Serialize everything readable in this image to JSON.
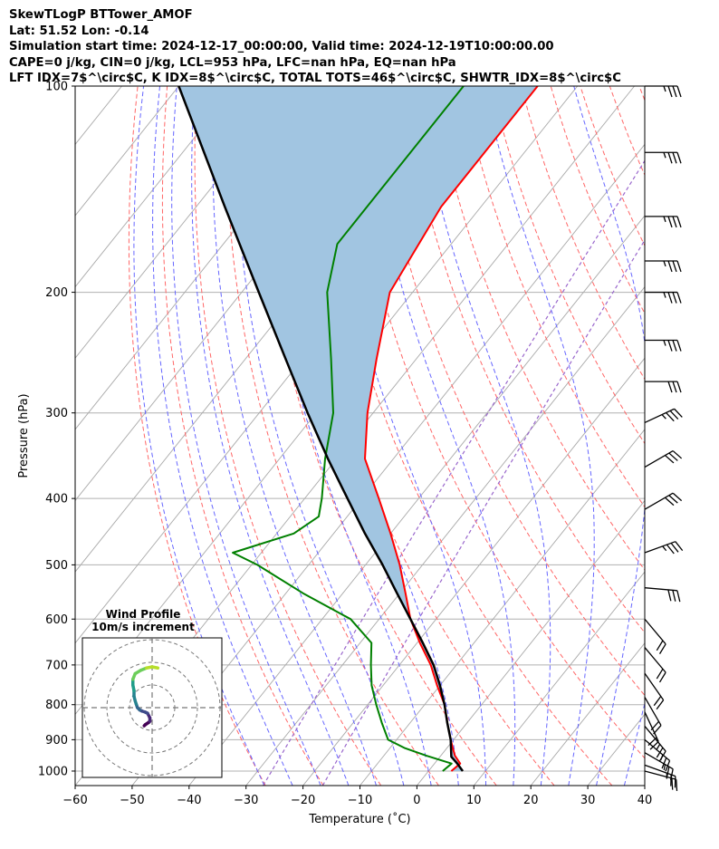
{
  "header": {
    "line1": "SkewTLogP BTTower_AMOF",
    "line2": "Lat: 51.52   Lon: -0.14",
    "line3": "Simulation start time: 2024-12-17_00:00:00, Valid time: 2024-12-19T10:00:00.00",
    "line4": "CAPE=0 j/kg, CIN=0 j/kg, LCL=953 hPa, LFC=nan hPa, EQ=nan hPa",
    "line5": "LFT IDX=7$^\\circ$C, K IDX=8$^\\circ$C, TOTAL TOTS=46$^\\circ$C, SHWTR_IDX=8$^\\circ$C"
  },
  "chart_data": {
    "type": "line",
    "xlabel": "Temperature ($^\\circ$C)",
    "ylabel": "Pressure (hPa)",
    "xlim": [
      -60,
      40
    ],
    "ylim": [
      1050,
      100
    ],
    "yscale": "log",
    "grid": true,
    "x_ticks": [
      -60,
      -50,
      -40,
      -30,
      -20,
      -10,
      0,
      10,
      20,
      30,
      40
    ],
    "y_ticks": [
      100,
      200,
      300,
      400,
      500,
      600,
      700,
      800,
      900,
      1000
    ],
    "colors": {
      "temperature": "#ff0000",
      "dewpoint": "#008000",
      "parcel": "#000000",
      "shade": "#a1c5e1",
      "isotherm": "#aaaaaa",
      "dry_adiabat": "#ff6666",
      "moist_adiabat": "#6666ff",
      "mixing_ratio": "#9966cc"
    },
    "series": [
      {
        "key": "temperature",
        "pressure": [
          1000,
          975,
          950,
          925,
          900,
          850,
          800,
          750,
          700,
          650,
          600,
          550,
          500,
          450,
          400,
          350,
          300,
          250,
          200,
          150,
          100
        ],
        "values": [
          4,
          4.5,
          2.5,
          1,
          -0.5,
          -3.5,
          -6.5,
          -10.5,
          -14.5,
          -19.5,
          -24.5,
          -29,
          -34,
          -40,
          -47,
          -55,
          -61,
          -67,
          -74,
          -77,
          -77
        ]
      },
      {
        "key": "dewpoint",
        "pressure": [
          1000,
          975,
          950,
          925,
          900,
          850,
          800,
          750,
          700,
          650,
          600,
          550,
          500,
          480,
          450,
          425,
          400,
          350,
          300,
          250,
          200,
          170,
          100
        ],
        "values": [
          2.5,
          3,
          -2.5,
          -7.5,
          -11.5,
          -15,
          -18.5,
          -22,
          -25,
          -28,
          -35,
          -47,
          -59,
          -65,
          -57,
          -55,
          -57,
          -62,
          -67,
          -75,
          -85,
          -90,
          -90
        ]
      },
      {
        "key": "parcel",
        "pressure": [
          1000,
          975,
          953,
          900,
          850,
          800,
          750,
          700,
          650,
          600,
          550,
          500,
          450,
          400,
          350,
          300,
          250,
          200,
          150,
          100
        ],
        "values": [
          6,
          4,
          2,
          -0.5,
          -3.5,
          -6.5,
          -10,
          -14,
          -19,
          -24.5,
          -30.5,
          -37,
          -44.5,
          -52.5,
          -61.5,
          -71.5,
          -83,
          -97,
          -115,
          -140
        ]
      }
    ],
    "wind_barbs": [
      {
        "p": 100,
        "dir_deg": 270,
        "speed_kt": 35
      },
      {
        "p": 125,
        "dir_deg": 270,
        "speed_kt": 35
      },
      {
        "p": 155,
        "dir_deg": 270,
        "speed_kt": 35
      },
      {
        "p": 180,
        "dir_deg": 270,
        "speed_kt": 35
      },
      {
        "p": 200,
        "dir_deg": 270,
        "speed_kt": 35
      },
      {
        "p": 235,
        "dir_deg": 270,
        "speed_kt": 35
      },
      {
        "p": 270,
        "dir_deg": 270,
        "speed_kt": 30
      },
      {
        "p": 310,
        "dir_deg": 245,
        "speed_kt": 35
      },
      {
        "p": 360,
        "dir_deg": 240,
        "speed_kt": 30
      },
      {
        "p": 415,
        "dir_deg": 240,
        "speed_kt": 30
      },
      {
        "p": 480,
        "dir_deg": 250,
        "speed_kt": 35
      },
      {
        "p": 540,
        "dir_deg": 275,
        "speed_kt": 30
      },
      {
        "p": 600,
        "dir_deg": 320,
        "speed_kt": 20
      },
      {
        "p": 660,
        "dir_deg": 320,
        "speed_kt": 20
      },
      {
        "p": 720,
        "dir_deg": 325,
        "speed_kt": 20
      },
      {
        "p": 780,
        "dir_deg": 330,
        "speed_kt": 20
      },
      {
        "p": 820,
        "dir_deg": 335,
        "speed_kt": 20
      },
      {
        "p": 860,
        "dir_deg": 320,
        "speed_kt": 25
      },
      {
        "p": 900,
        "dir_deg": 310,
        "speed_kt": 25
      },
      {
        "p": 940,
        "dir_deg": 300,
        "speed_kt": 25
      },
      {
        "p": 980,
        "dir_deg": 290,
        "speed_kt": 25
      },
      {
        "p": 1000,
        "dir_deg": 285,
        "speed_kt": 20
      }
    ],
    "inset": {
      "title": "Wind Profile",
      "subtitle": "10m/s increment",
      "rings_ms": [
        10,
        20,
        30
      ],
      "hodograph": [
        [
          -7,
          -16
        ],
        [
          -6,
          -15
        ],
        [
          -3,
          -13
        ],
        [
          -2,
          -12
        ],
        [
          -2,
          -9
        ],
        [
          -4,
          -5
        ],
        [
          -6,
          -4
        ],
        [
          -9,
          -3
        ],
        [
          -11,
          -2
        ],
        [
          -13,
          0
        ],
        [
          -14,
          3
        ],
        [
          -15,
          6
        ],
        [
          -16,
          10
        ],
        [
          -16,
          15
        ],
        [
          -17,
          20
        ],
        [
          -17,
          25
        ],
        [
          -15,
          30
        ],
        [
          -10,
          33
        ],
        [
          -5,
          35
        ],
        [
          0,
          36
        ],
        [
          5,
          35
        ]
      ]
    }
  }
}
